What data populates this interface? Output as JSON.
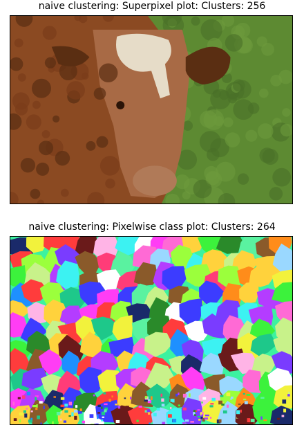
{
  "panels": [
    {
      "title": "naive clustering: Superpixel plot: Clusters: 256",
      "kind": "superpixel-photo",
      "palette": {
        "grass": "#5d8a32",
        "grass_dark": "#4a7028",
        "cow_body": "#8b4a22",
        "cow_dark": "#5a2e12",
        "cow_light": "#a86a45",
        "blaze": "#e6dcc8"
      }
    },
    {
      "title": "naive clustering: Pixelwise class plot: Clusters: 264",
      "kind": "pixelwise-class-map",
      "palette": [
        "#ff3df5",
        "#3cf23c",
        "#1e90ff",
        "#ff8c1a",
        "#9bff3c",
        "#ff3c78",
        "#3cf2f2",
        "#7a3cff",
        "#ff6ad5",
        "#2a8a2a",
        "#1a2a6a",
        "#f2f23c",
        "#ff3c3c",
        "#8a5a2a",
        "#c8f28a",
        "#3c3cff",
        "#ffb4e6",
        "#1ec88a",
        "#b43cff",
        "#ffffff",
        "#6a1a1a",
        "#9ad8ff",
        "#ffd23c",
        "#5af2a0"
      ]
    }
  ]
}
